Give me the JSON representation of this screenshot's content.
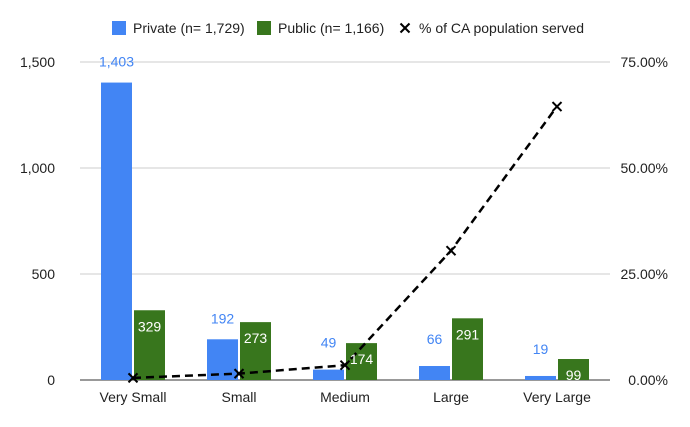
{
  "chart_data": {
    "type": "bar",
    "categories": [
      "Very Small",
      "Small",
      "Medium",
      "Large",
      "Very Large"
    ],
    "series": [
      {
        "name": "Private (n= 1,729)",
        "kind": "bar",
        "axis": "left",
        "color": "#4285f4",
        "label_color": "#4285f4",
        "values": [
          1403,
          192,
          49,
          66,
          19
        ],
        "labels": [
          "1,403",
          "192",
          "49",
          "66",
          "19"
        ]
      },
      {
        "name": "Public (n= 1,166)",
        "kind": "bar",
        "axis": "left",
        "color": "#38761d",
        "label_color": "#ffffff",
        "values": [
          329,
          273,
          174,
          291,
          99
        ],
        "labels": [
          "329",
          "273",
          "174",
          "291",
          "99"
        ]
      },
      {
        "name": "% of CA population served",
        "kind": "line",
        "axis": "right",
        "color": "#000000",
        "line_style": "dashed",
        "marker": "x",
        "values": [
          0.5,
          1.5,
          3.5,
          30.5,
          64.5
        ]
      }
    ],
    "y_left": {
      "range": [
        0,
        1500
      ],
      "ticks": [
        0,
        500,
        1000,
        1500
      ],
      "tick_labels": [
        "0",
        "500",
        "1,000",
        "1,500"
      ]
    },
    "y_right": {
      "range": [
        0,
        75
      ],
      "ticks": [
        0,
        25,
        50,
        75
      ],
      "tick_labels": [
        "0.00%",
        "25.00%",
        "50.00%",
        "75.00%"
      ]
    },
    "grid": true,
    "legend_position": "top"
  }
}
